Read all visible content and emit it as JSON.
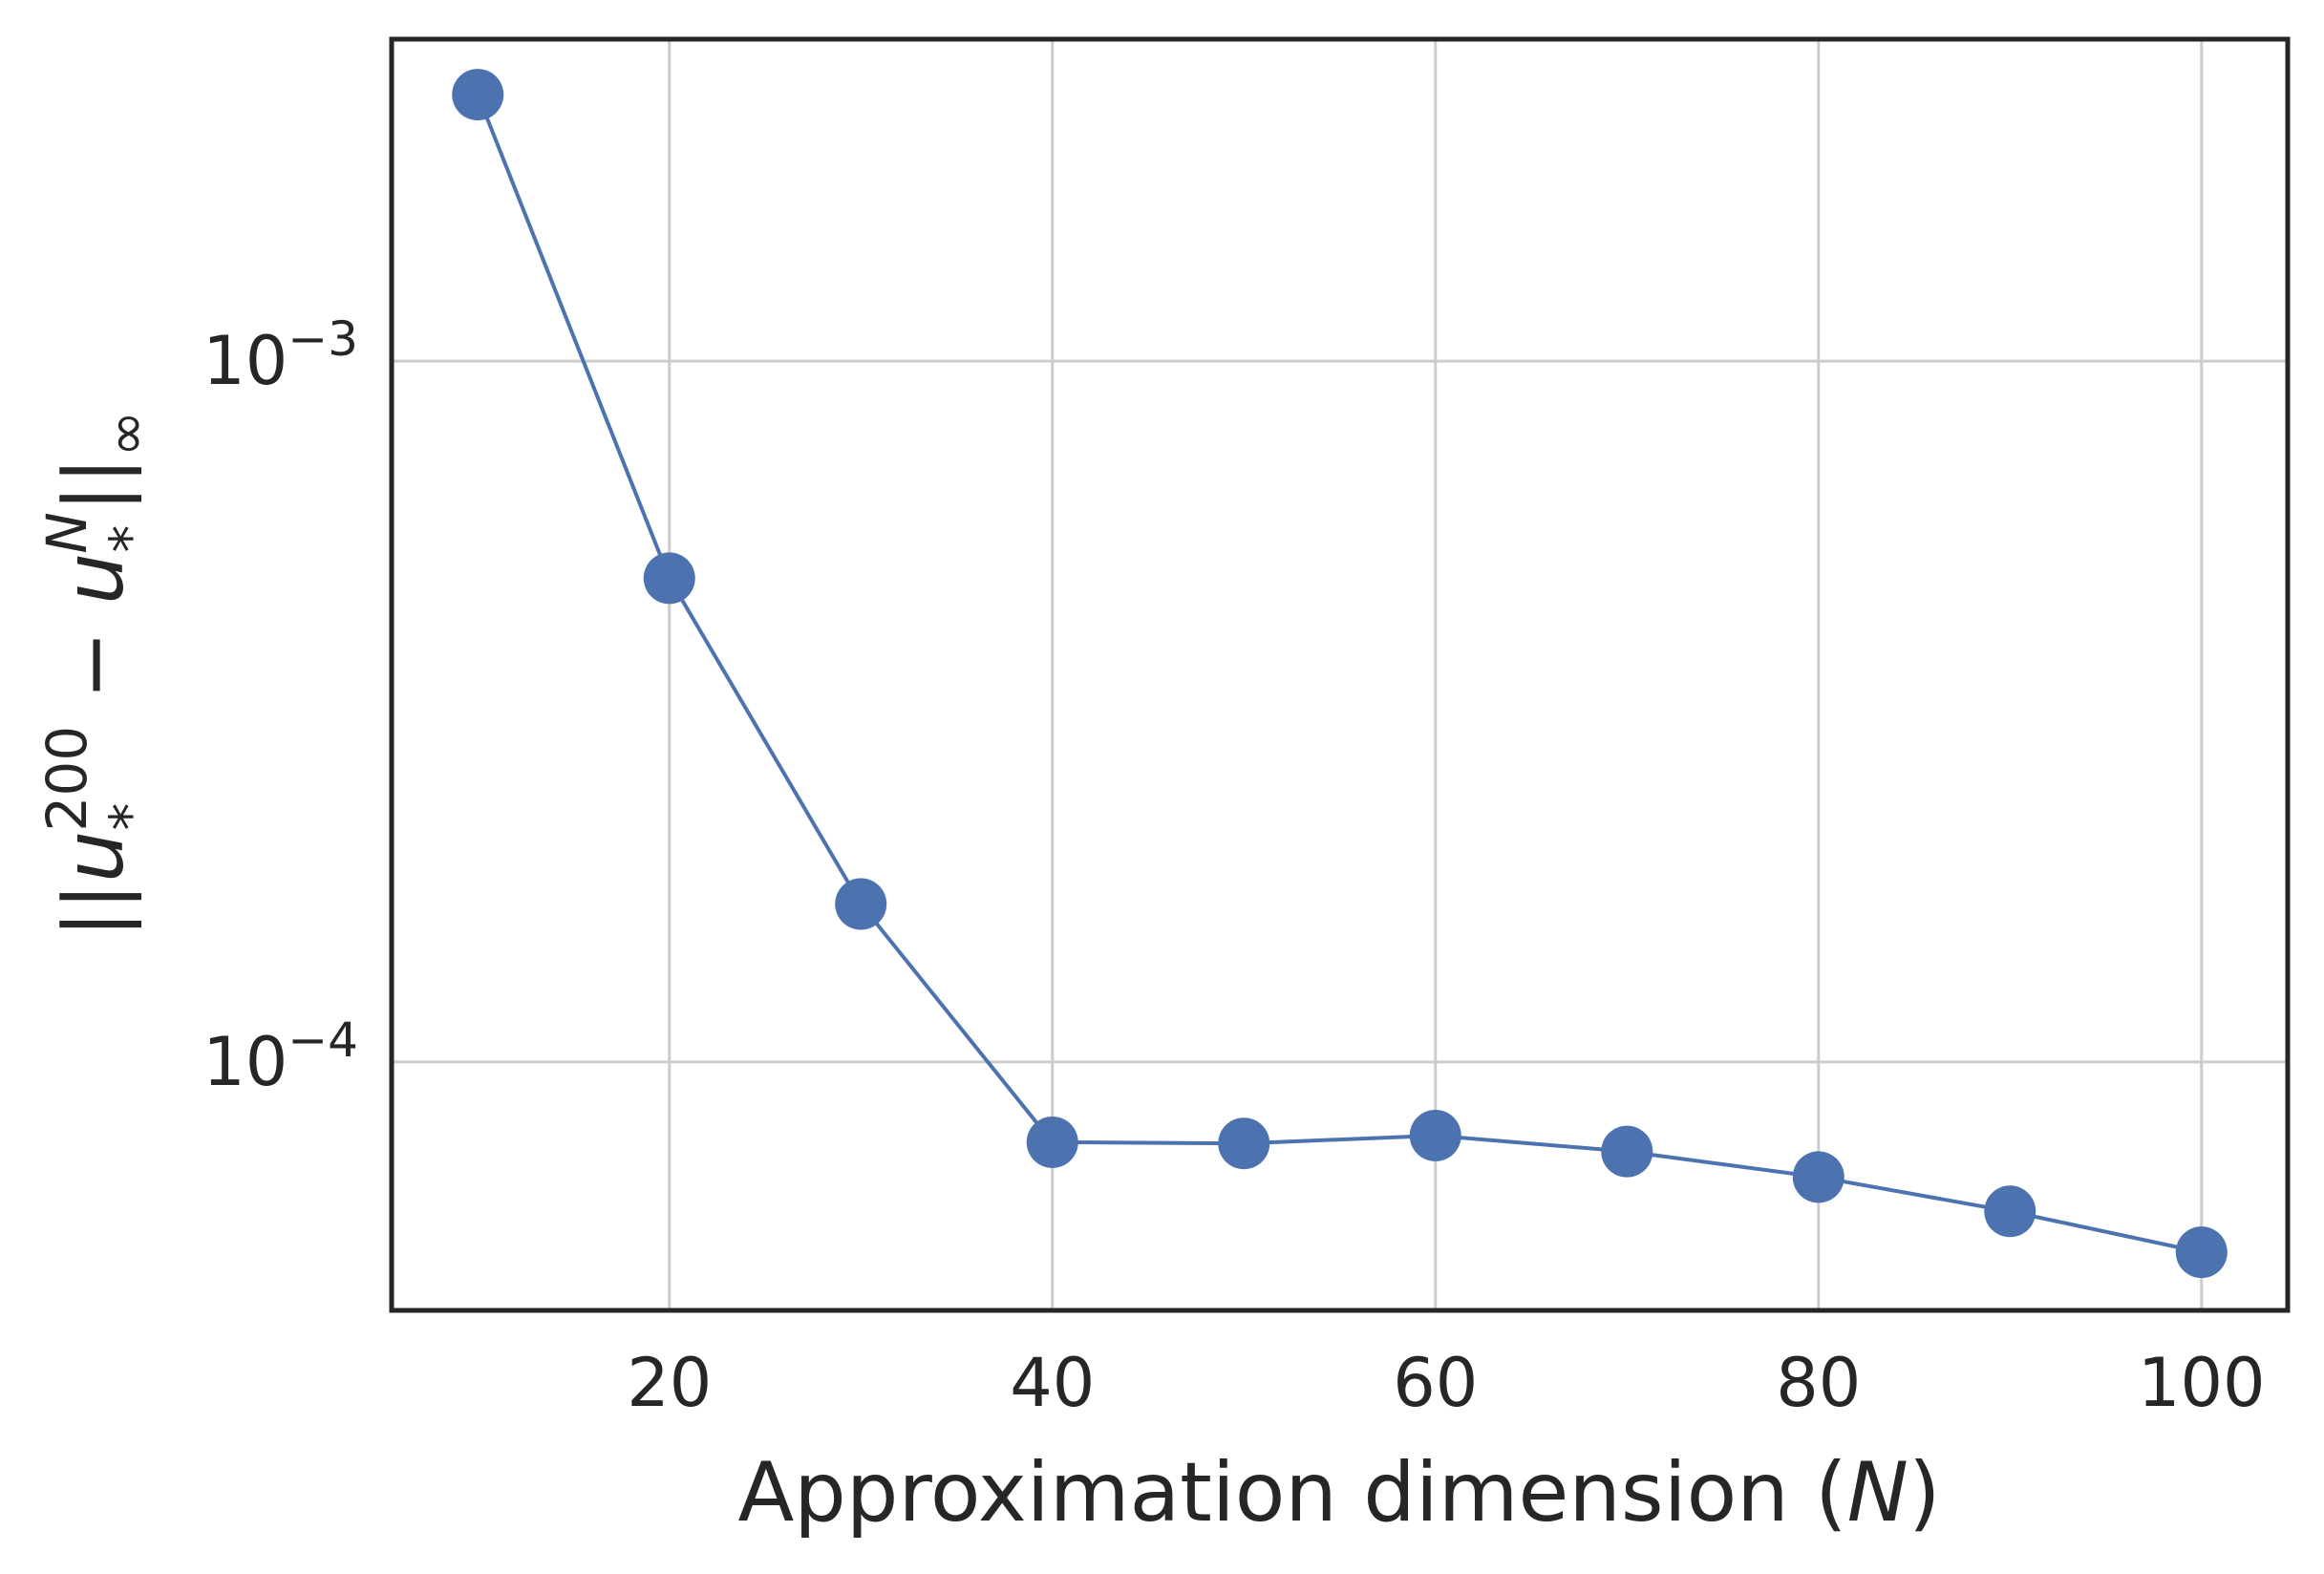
{
  "chart_data": {
    "type": "line",
    "title": "",
    "xlabel": "Approximation dimension (N)",
    "xlabel_parts": {
      "text": "Approximation dimension (",
      "var": "N",
      "close": ")"
    },
    "ylabel": "||u*^200 − u*^N||∞",
    "ylabel_parts": {
      "bar_open": "||",
      "u1": "u",
      "sub1": "*",
      "sup1": "200",
      "minus": " − ",
      "u2": "u",
      "sub2": "*",
      "sup2": "N",
      "bar_close": "||",
      "sub3": "∞"
    },
    "x": [
      10,
      20,
      30,
      40,
      50,
      60,
      70,
      80,
      90,
      100
    ],
    "series": [
      {
        "values": [
          0.0024,
          0.00049,
          0.000168,
          7.68e-05,
          7.65e-05,
          7.85e-05,
          7.45e-05,
          6.85e-05,
          6.12e-05,
          5.35e-05
        ]
      }
    ],
    "xlim": [
      5.5,
      104.5
    ],
    "ylim": [
      4.42e-05,
      0.00288
    ],
    "yscale": "log",
    "xticks": [
      20,
      40,
      60,
      80,
      100
    ],
    "xtick_labels": [
      "20",
      "40",
      "60",
      "80",
      "100"
    ],
    "yticks": [
      0.001,
      0.0001
    ],
    "ytick_labels": [
      {
        "base": "10",
        "exp": "−3"
      },
      {
        "base": "10",
        "exp": "−4"
      }
    ],
    "grid": true,
    "legend": "none",
    "colors": {
      "series": "#4c72b0",
      "grid": "#cccccc",
      "frame": "#262626",
      "text": "#262626"
    }
  }
}
